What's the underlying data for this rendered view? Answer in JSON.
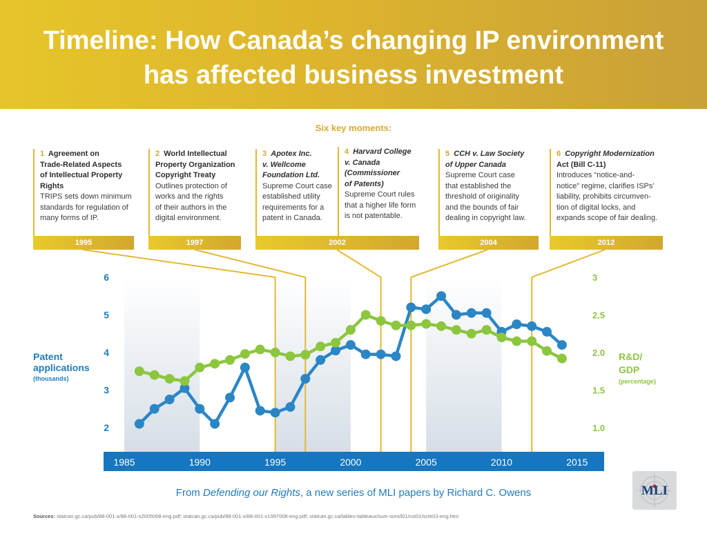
{
  "title_line1": "Timeline: How Canada’s changing IP environment",
  "title_line2": "has affected business investment",
  "subheading": "Six key moments:",
  "moments": [
    {
      "num": "1",
      "head_lines": [
        "Agreement on",
        "Trade-Related Aspects",
        "of Intellectual Property",
        "Rights"
      ],
      "body_lines": [
        "TRIPS sets down minimum",
        "standards for regulation of",
        "many forms of IP."
      ],
      "year": "1995"
    },
    {
      "num": "2",
      "head_lines": [
        "World Intellectual",
        "Property Organization",
        "Copyright Treaty"
      ],
      "body_lines": [
        "Outlines protection of",
        "works and the rights",
        "of their authors in the",
        "digital environment."
      ],
      "year": "1997"
    },
    {
      "num": "3",
      "head_lines": [
        "Apotex Inc.",
        "v. Wellcome",
        "Foundation Ltd."
      ],
      "body_lines": [
        "Supreme Court case",
        "established utility",
        "requirements for a",
        "patent in Canada."
      ],
      "year": "2002"
    },
    {
      "num": "4",
      "head_lines": [
        "Harvard College",
        "v. Canada",
        "(Commissioner",
        "of Patents)"
      ],
      "body_lines": [
        "Supreme Court rules",
        "that a higher life form",
        "is not patentable."
      ],
      "year": ""
    },
    {
      "num": "5",
      "head_lines": [
        "CCH v. Law Society",
        "of Upper Canada"
      ],
      "body_lines": [
        "Supreme Court case",
        "that established the",
        "threshold of originality",
        "and the bounds of fair",
        "dealing in copyright law."
      ],
      "year": "2004"
    },
    {
      "num": "6",
      "head_lines": [
        "Copyright Modernization",
        "Act (Bill C-11)"
      ],
      "body_lines": [
        "Introduces “notice-and-",
        "notice” regime, clarifies ISPs’",
        "liability, prohibits circumven-",
        "tion of digital locks, and",
        "expands scope of fair dealing."
      ],
      "year": "2012"
    }
  ],
  "footer_prefix": "From ",
  "footer_italic": "Defending our Rights",
  "footer_suffix": ", a new series of MLI papers by Richard C. Owens",
  "logo_text": "MLI",
  "sources_label": "Sources:",
  "sources_text": "statcan.gc.ca/pub/88-001-x/88-001-x2005008-eng.pdf; statcan.gc.ca/pub/88-001-x/88-001-x1997008-eng.pdf; statcan.gc.ca/tables-tableaux/sum-som/l01/cst01/scte03-eng.htm",
  "colors": {
    "patents": "#2b86c5",
    "rd": "#8cc63f",
    "gold": "#e2b833",
    "axis_bar": "#1676bf"
  },
  "chart_data": {
    "type": "line",
    "x": [
      1986,
      1987,
      1988,
      1989,
      1990,
      1991,
      1992,
      1993,
      1994,
      1995,
      1996,
      1997,
      1998,
      1999,
      2000,
      2001,
      2002,
      2003,
      2004,
      2005,
      2006,
      2007,
      2008,
      2009,
      2010,
      2011,
      2012,
      2013,
      2014
    ],
    "series": [
      {
        "axis": "left",
        "color": "#2b86c5",
        "values": [
          2.1,
          2.5,
          2.75,
          3.05,
          2.5,
          2.1,
          2.8,
          3.6,
          2.45,
          2.4,
          2.55,
          3.3,
          3.8,
          4.05,
          4.2,
          3.95,
          3.95,
          3.9,
          5.2,
          5.15,
          5.5,
          5.0,
          5.05,
          5.05,
          4.55,
          4.75,
          4.7,
          4.55,
          4.2
        ]
      },
      {
        "axis": "right",
        "color": "#8cc63f",
        "values": [
          1.75,
          1.7,
          1.65,
          1.62,
          1.8,
          1.85,
          1.9,
          1.98,
          2.04,
          2.0,
          1.95,
          1.97,
          2.08,
          2.13,
          2.3,
          2.5,
          2.42,
          2.36,
          2.36,
          2.38,
          2.35,
          2.3,
          2.25,
          2.3,
          2.2,
          2.15,
          2.15,
          2.02,
          1.92
        ]
      }
    ],
    "ylabel_left_lines": [
      "Patent",
      "applications"
    ],
    "ylabel_left_unit": "(thousands)",
    "ylabel_right_lines": [
      "R&D/",
      "GDP"
    ],
    "ylabel_right_unit": "(percentage)",
    "left_ticks": [
      "6",
      "5",
      "4",
      "3",
      "2"
    ],
    "right_ticks": [
      "3",
      "2.5",
      "2.0",
      "1.5",
      "1.0"
    ],
    "ylim_left": [
      2,
      6
    ],
    "ylim_right": [
      1.0,
      3.0
    ],
    "x_ticks": [
      "1985",
      "1990",
      "1995",
      "2000",
      "2005",
      "2010",
      "2015"
    ],
    "xlim": [
      1985,
      2015
    ],
    "shaded_decades": [
      [
        1985,
        1990
      ],
      [
        1995,
        2000
      ],
      [
        2005,
        2010
      ]
    ],
    "event_years": [
      1997,
      2002,
      2004,
      2012
    ],
    "grid": false
  }
}
